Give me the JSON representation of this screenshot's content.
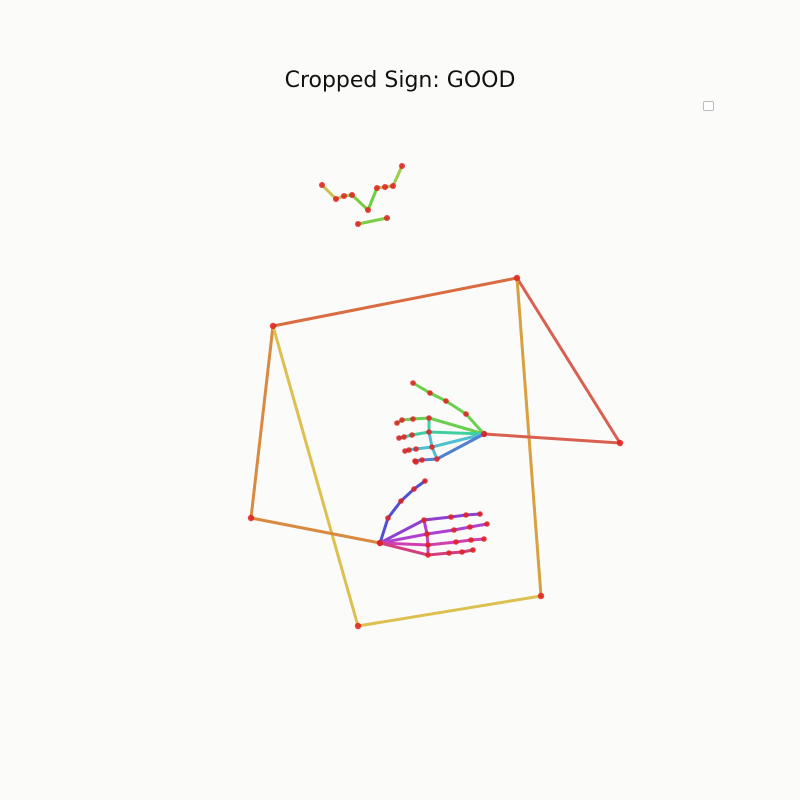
{
  "title": "Cropped Sign: GOOD",
  "colors": {
    "background": "#fbfbf9",
    "joint": "#e02020",
    "face": [
      "#c8c050",
      "#b8c050",
      "#9ccc4c",
      "#7ccc44",
      "#6ad044"
    ],
    "pose": [
      "#d96c40",
      "#d9a040",
      "#dcc050",
      "#d88a40",
      "#d86050",
      "#d87840"
    ],
    "right_hand": [
      "#d9d040",
      "#6ad050",
      "#40d0a0",
      "#50c0d0",
      "#5080d0"
    ],
    "left_hand": [
      "#5050d0",
      "#9040d0",
      "#b040d0",
      "#d040b0",
      "#d04080"
    ]
  }
}
